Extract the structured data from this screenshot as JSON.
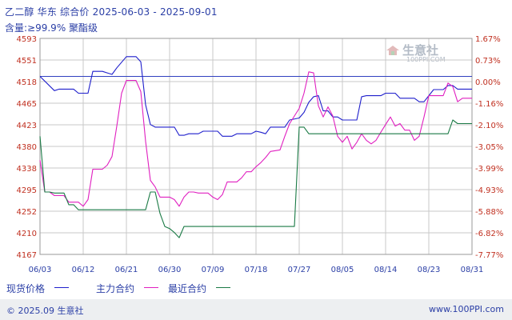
{
  "header": {
    "title": "乙二醇 华东 综合价 2025-06-03 - 2025-09-01",
    "spec": "含量:≥99.9% 聚酯级"
  },
  "watermark": {
    "brand": "生意社",
    "url": "100PPI.COM"
  },
  "legend": {
    "items": [
      {
        "label": "现货价格",
        "color": "#1f1fcc"
      },
      {
        "label": "主力合约",
        "color": "#e020c0"
      },
      {
        "label": "最近合约",
        "color": "#1a7a45"
      }
    ]
  },
  "footer": {
    "copyright": "© 2025.09 生意社",
    "site": "www.100PPI.com"
  },
  "chart_data": {
    "type": "line",
    "x_ticks": [
      "06/03",
      "06/12",
      "06/21",
      "06/30",
      "07/09",
      "07/18",
      "07/27",
      "08/05",
      "08/14",
      "08/23",
      "08/31"
    ],
    "y_left_ticks": [
      "4167",
      "4210",
      "4252",
      "4295",
      "4338",
      "4380",
      "4423",
      "4465",
      "4518",
      "4551",
      "4593"
    ],
    "y_right_ticks": [
      "-7.77%",
      "-6.82%",
      "-5.88%",
      "-4.93%",
      "-3.99%",
      "-3.05%",
      "-2.10%",
      "-1.16%",
      "0.00%",
      "0.73%",
      "1.67%"
    ],
    "ylim": [
      4167,
      4593
    ],
    "baseline": 4518,
    "colors": {
      "spot": "#1f1fcc",
      "main": "#e020c0",
      "near": "#1a7a45",
      "grid": "#c8c8c8",
      "baseline": "#3040c0",
      "axis_text": "#c03020"
    },
    "series": [
      {
        "name": "现货价格",
        "key": "spot",
        "points": [
          [
            0,
            4518
          ],
          [
            3,
            4490
          ],
          [
            4,
            4493
          ],
          [
            7,
            4493
          ],
          [
            8,
            4485
          ],
          [
            10,
            4485
          ],
          [
            11,
            4528
          ],
          [
            13,
            4528
          ],
          [
            14,
            4525
          ],
          [
            15,
            4522
          ],
          [
            16,
            4535
          ],
          [
            18,
            4557
          ],
          [
            20,
            4557
          ],
          [
            21,
            4547
          ],
          [
            22,
            4462
          ],
          [
            23,
            4423
          ],
          [
            24,
            4418
          ],
          [
            28,
            4418
          ],
          [
            29,
            4402
          ],
          [
            30,
            4402
          ],
          [
            31,
            4405
          ],
          [
            33,
            4405
          ],
          [
            34,
            4410
          ],
          [
            37,
            4410
          ],
          [
            38,
            4400
          ],
          [
            40,
            4400
          ],
          [
            41,
            4405
          ],
          [
            44,
            4405
          ],
          [
            45,
            4410
          ],
          [
            46,
            4408
          ],
          [
            47,
            4405
          ],
          [
            48,
            4418
          ],
          [
            51,
            4418
          ],
          [
            52,
            4432
          ],
          [
            54,
            4436
          ],
          [
            55,
            4447
          ],
          [
            56,
            4467
          ],
          [
            57,
            4478
          ],
          [
            58,
            4480
          ],
          [
            59,
            4450
          ],
          [
            60,
            4450
          ],
          [
            61,
            4438
          ],
          [
            62,
            4438
          ],
          [
            63,
            4432
          ],
          [
            66,
            4432
          ],
          [
            67,
            4478
          ],
          [
            68,
            4480
          ],
          [
            71,
            4480
          ],
          [
            72,
            4485
          ],
          [
            74,
            4485
          ],
          [
            75,
            4475
          ],
          [
            78,
            4475
          ],
          [
            79,
            4468
          ],
          [
            80,
            4468
          ],
          [
            81,
            4480
          ],
          [
            82,
            4492
          ],
          [
            84,
            4492
          ],
          [
            85,
            4500
          ],
          [
            86,
            4500
          ],
          [
            87,
            4493
          ],
          [
            90,
            4493
          ]
        ]
      },
      {
        "name": "主力合约",
        "key": "main",
        "points": [
          [
            0,
            4353
          ],
          [
            1,
            4290
          ],
          [
            2,
            4290
          ],
          [
            3,
            4283
          ],
          [
            5,
            4283
          ],
          [
            6,
            4270
          ],
          [
            8,
            4270
          ],
          [
            9,
            4262
          ],
          [
            10,
            4275
          ],
          [
            11,
            4335
          ],
          [
            13,
            4335
          ],
          [
            14,
            4343
          ],
          [
            15,
            4360
          ],
          [
            16,
            4420
          ],
          [
            17,
            4485
          ],
          [
            18,
            4510
          ],
          [
            20,
            4510
          ],
          [
            21,
            4488
          ],
          [
            22,
            4390
          ],
          [
            23,
            4313
          ],
          [
            24,
            4300
          ],
          [
            25,
            4280
          ],
          [
            27,
            4280
          ],
          [
            28,
            4275
          ],
          [
            29,
            4262
          ],
          [
            30,
            4280
          ],
          [
            31,
            4290
          ],
          [
            32,
            4290
          ],
          [
            33,
            4288
          ],
          [
            35,
            4288
          ],
          [
            36,
            4280
          ],
          [
            37,
            4275
          ],
          [
            38,
            4285
          ],
          [
            39,
            4310
          ],
          [
            41,
            4310
          ],
          [
            42,
            4318
          ],
          [
            43,
            4330
          ],
          [
            44,
            4330
          ],
          [
            45,
            4340
          ],
          [
            46,
            4348
          ],
          [
            47,
            4358
          ],
          [
            48,
            4370
          ],
          [
            50,
            4373
          ],
          [
            51,
            4400
          ],
          [
            52,
            4425
          ],
          [
            53,
            4440
          ],
          [
            54,
            4455
          ],
          [
            55,
            4485
          ],
          [
            56,
            4527
          ],
          [
            57,
            4525
          ],
          [
            58,
            4460
          ],
          [
            59,
            4438
          ],
          [
            60,
            4458
          ],
          [
            61,
            4440
          ],
          [
            62,
            4400
          ],
          [
            63,
            4388
          ],
          [
            64,
            4400
          ],
          [
            65,
            4375
          ],
          [
            66,
            4388
          ],
          [
            67,
            4405
          ],
          [
            68,
            4392
          ],
          [
            69,
            4385
          ],
          [
            70,
            4392
          ],
          [
            71,
            4408
          ],
          [
            72,
            4423
          ],
          [
            73,
            4438
          ],
          [
            74,
            4420
          ],
          [
            75,
            4425
          ],
          [
            76,
            4412
          ],
          [
            77,
            4412
          ],
          [
            78,
            4392
          ],
          [
            79,
            4400
          ],
          [
            80,
            4438
          ],
          [
            81,
            4480
          ],
          [
            84,
            4480
          ],
          [
            85,
            4505
          ],
          [
            86,
            4498
          ],
          [
            87,
            4468
          ],
          [
            88,
            4475
          ],
          [
            90,
            4475
          ]
        ]
      },
      {
        "name": "最近合约",
        "key": "near",
        "points": [
          [
            0,
            4400
          ],
          [
            1,
            4290
          ],
          [
            2,
            4290
          ],
          [
            3,
            4288
          ],
          [
            5,
            4288
          ],
          [
            6,
            4265
          ],
          [
            7,
            4265
          ],
          [
            8,
            4255
          ],
          [
            22,
            4255
          ],
          [
            23,
            4290
          ],
          [
            24,
            4290
          ],
          [
            25,
            4248
          ],
          [
            26,
            4222
          ],
          [
            27,
            4218
          ],
          [
            28,
            4210
          ],
          [
            29,
            4200
          ],
          [
            30,
            4222
          ],
          [
            31,
            4222
          ],
          [
            52,
            4222
          ],
          [
            53,
            4222
          ],
          [
            54,
            4418
          ],
          [
            55,
            4418
          ],
          [
            56,
            4405
          ],
          [
            84,
            4405
          ],
          [
            85,
            4405
          ],
          [
            86,
            4432
          ],
          [
            87,
            4425
          ],
          [
            90,
            4425
          ]
        ]
      }
    ]
  }
}
